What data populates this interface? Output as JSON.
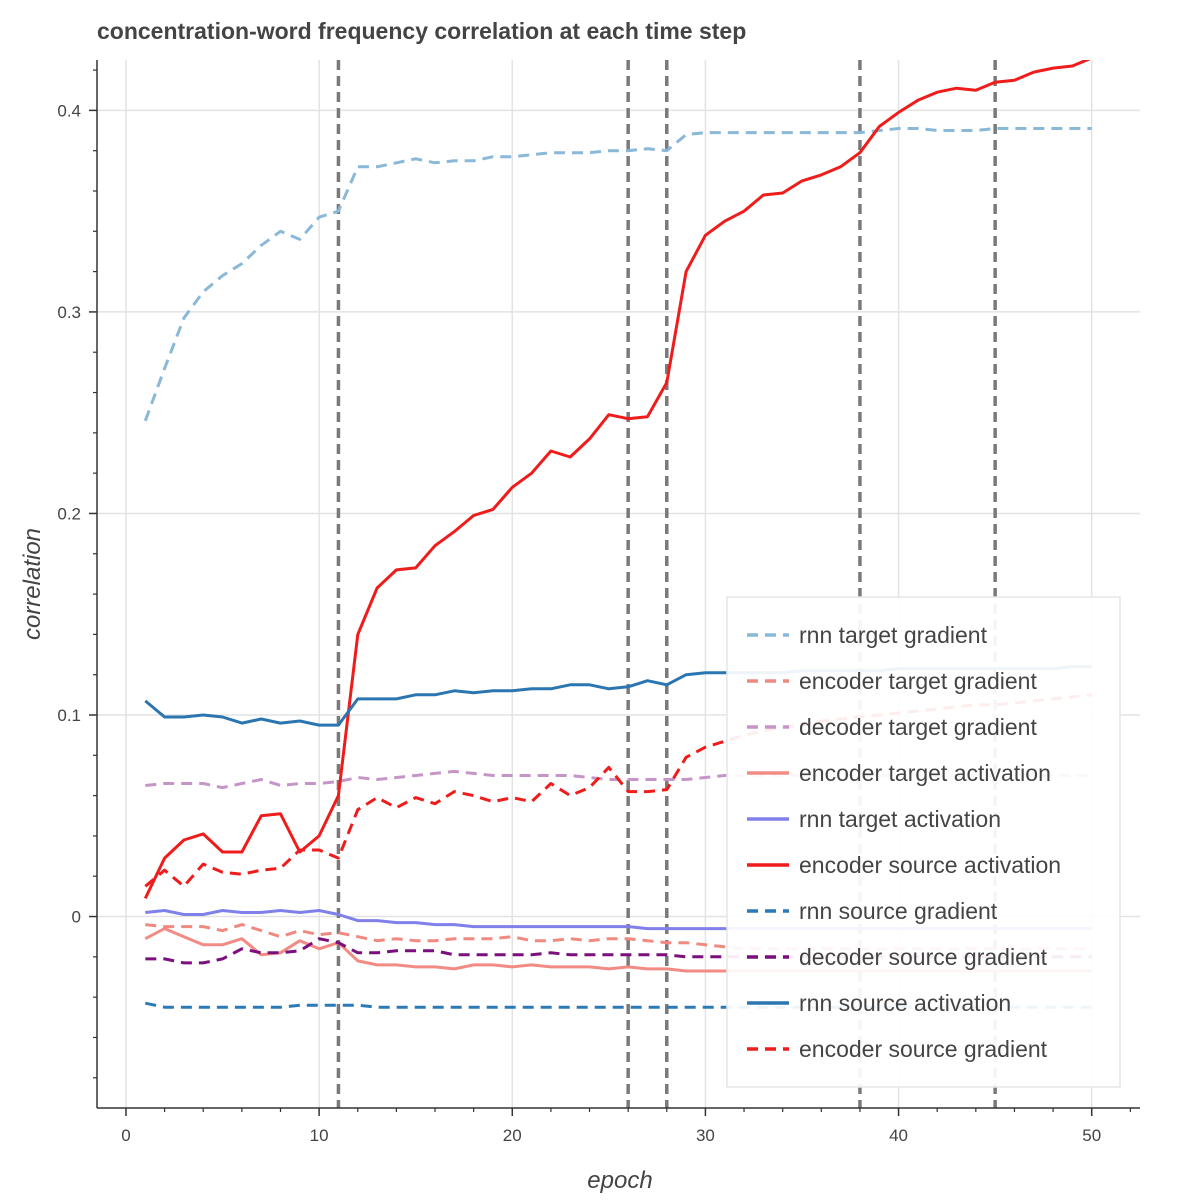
{
  "chart_data": {
    "type": "line",
    "title": "concentration-word frequency correlation at each time step",
    "xlabel": "epoch",
    "ylabel": "correlation",
    "xlim": [
      -1.5,
      52.5
    ],
    "ylim": [
      -0.095,
      0.425
    ],
    "xticks": [
      0,
      10,
      20,
      30,
      40,
      50
    ],
    "xtick_labels": [
      "0",
      "10",
      "20",
      "30",
      "40",
      "50"
    ],
    "yticks": [
      0,
      0.1,
      0.2,
      0.3,
      0.4
    ],
    "ytick_labels": [
      "0",
      "0.1",
      "0.2",
      "0.3",
      "0.4"
    ],
    "grid": true,
    "legend_position": "bottom-right",
    "vertical_lines": [
      11,
      26,
      28,
      38,
      45
    ],
    "x": [
      1,
      2,
      3,
      4,
      5,
      6,
      7,
      8,
      9,
      10,
      11,
      12,
      13,
      14,
      15,
      16,
      17,
      18,
      19,
      20,
      21,
      22,
      23,
      24,
      25,
      26,
      27,
      28,
      29,
      30,
      31,
      32,
      33,
      34,
      35,
      36,
      37,
      38,
      39,
      40,
      41,
      42,
      43,
      44,
      45,
      46,
      47,
      48,
      49,
      50
    ],
    "series": [
      {
        "name": "rnn target gradient",
        "color": "#89b8d8",
        "dash": "dashed",
        "values": [
          0.246,
          0.272,
          0.297,
          0.31,
          0.318,
          0.324,
          0.333,
          0.34,
          0.336,
          0.347,
          0.35,
          0.372,
          0.372,
          0.374,
          0.376,
          0.374,
          0.375,
          0.375,
          0.377,
          0.377,
          0.378,
          0.379,
          0.379,
          0.379,
          0.38,
          0.38,
          0.381,
          0.38,
          0.388,
          0.389,
          0.389,
          0.389,
          0.389,
          0.389,
          0.389,
          0.389,
          0.389,
          0.389,
          0.39,
          0.391,
          0.391,
          0.39,
          0.39,
          0.39,
          0.391,
          0.391,
          0.391,
          0.391,
          0.391,
          0.391
        ]
      },
      {
        "name": "encoder target gradient",
        "color": "#f08a80",
        "dash": "dashed",
        "values": [
          -0.004,
          -0.005,
          -0.005,
          -0.005,
          -0.007,
          -0.004,
          -0.007,
          -0.01,
          -0.007,
          -0.009,
          -0.008,
          -0.01,
          -0.012,
          -0.011,
          -0.012,
          -0.012,
          -0.011,
          -0.011,
          -0.011,
          -0.01,
          -0.012,
          -0.012,
          -0.011,
          -0.012,
          -0.011,
          -0.011,
          -0.012,
          -0.013,
          -0.013,
          -0.014,
          -0.015,
          -0.016,
          -0.016,
          -0.016,
          -0.016,
          -0.016,
          -0.016,
          -0.016,
          -0.016,
          -0.016,
          -0.016,
          -0.016,
          -0.016,
          -0.016,
          -0.016,
          -0.016,
          -0.016,
          -0.016,
          -0.016,
          -0.016
        ]
      },
      {
        "name": "decoder target gradient",
        "color": "#c695c8",
        "dash": "dashed",
        "values": [
          0.065,
          0.066,
          0.066,
          0.066,
          0.064,
          0.066,
          0.068,
          0.065,
          0.066,
          0.066,
          0.067,
          0.069,
          0.068,
          0.069,
          0.07,
          0.071,
          0.072,
          0.071,
          0.07,
          0.07,
          0.07,
          0.07,
          0.07,
          0.069,
          0.068,
          0.068,
          0.068,
          0.068,
          0.068,
          0.069,
          0.07,
          0.07,
          0.07,
          0.07,
          0.07,
          0.07,
          0.07,
          0.07,
          0.07,
          0.07,
          0.07,
          0.07,
          0.07,
          0.07,
          0.07,
          0.07,
          0.07,
          0.07,
          0.07,
          0.07
        ]
      },
      {
        "name": "encoder target activation",
        "color": "#f28b84",
        "dash": "solid",
        "values": [
          -0.011,
          -0.006,
          -0.01,
          -0.014,
          -0.014,
          -0.011,
          -0.019,
          -0.018,
          -0.012,
          -0.016,
          -0.013,
          -0.022,
          -0.024,
          -0.024,
          -0.025,
          -0.025,
          -0.026,
          -0.024,
          -0.024,
          -0.025,
          -0.024,
          -0.025,
          -0.025,
          -0.025,
          -0.026,
          -0.025,
          -0.026,
          -0.026,
          -0.027,
          -0.027,
          -0.027,
          -0.027,
          -0.027,
          -0.027,
          -0.027,
          -0.027,
          -0.027,
          -0.027,
          -0.027,
          -0.027,
          -0.027,
          -0.027,
          -0.027,
          -0.027,
          -0.027,
          -0.027,
          -0.027,
          -0.027,
          -0.027,
          -0.027
        ]
      },
      {
        "name": "rnn target activation",
        "color": "#8080ea",
        "dash": "solid",
        "values": [
          0.002,
          0.003,
          0.001,
          0.001,
          0.003,
          0.002,
          0.002,
          0.003,
          0.002,
          0.003,
          0.001,
          -0.002,
          -0.002,
          -0.003,
          -0.003,
          -0.004,
          -0.004,
          -0.005,
          -0.005,
          -0.005,
          -0.005,
          -0.005,
          -0.005,
          -0.005,
          -0.005,
          -0.005,
          -0.006,
          -0.006,
          -0.006,
          -0.006,
          -0.006,
          -0.006,
          -0.006,
          -0.006,
          -0.006,
          -0.006,
          -0.006,
          -0.006,
          -0.006,
          -0.006,
          -0.006,
          -0.006,
          -0.006,
          -0.006,
          -0.006,
          -0.006,
          -0.006,
          -0.006,
          -0.006,
          -0.006
        ]
      },
      {
        "name": "encoder source activation",
        "color": "#ef1c1c",
        "dash": "solid",
        "values": [
          0.009,
          0.029,
          0.038,
          0.041,
          0.032,
          0.032,
          0.05,
          0.051,
          0.032,
          0.04,
          0.06,
          0.14,
          0.163,
          0.172,
          0.173,
          0.184,
          0.191,
          0.199,
          0.202,
          0.213,
          0.22,
          0.231,
          0.228,
          0.237,
          0.249,
          0.247,
          0.248,
          0.265,
          0.32,
          0.338,
          0.345,
          0.35,
          0.358,
          0.359,
          0.365,
          0.368,
          0.372,
          0.379,
          0.392,
          0.399,
          0.405,
          0.409,
          0.411,
          0.41,
          0.414,
          0.415,
          0.419,
          0.421,
          0.422,
          0.426
        ]
      },
      {
        "name": "rnn source gradient",
        "color": "#2a7ab8",
        "dash": "dashed",
        "values": [
          -0.043,
          -0.045,
          -0.045,
          -0.045,
          -0.045,
          -0.045,
          -0.045,
          -0.045,
          -0.044,
          -0.044,
          -0.044,
          -0.044,
          -0.045,
          -0.045,
          -0.045,
          -0.045,
          -0.045,
          -0.045,
          -0.045,
          -0.045,
          -0.045,
          -0.045,
          -0.045,
          -0.045,
          -0.045,
          -0.045,
          -0.045,
          -0.045,
          -0.045,
          -0.045,
          -0.045,
          -0.045,
          -0.045,
          -0.045,
          -0.045,
          -0.045,
          -0.045,
          -0.045,
          -0.045,
          -0.045,
          -0.045,
          -0.045,
          -0.045,
          -0.045,
          -0.045,
          -0.045,
          -0.045,
          -0.045,
          -0.045,
          -0.045
        ]
      },
      {
        "name": "decoder source gradient",
        "color": "#7b0f7e",
        "dash": "dashed",
        "values": [
          -0.021,
          -0.021,
          -0.023,
          -0.023,
          -0.021,
          -0.016,
          -0.018,
          -0.018,
          -0.017,
          -0.011,
          -0.013,
          -0.018,
          -0.018,
          -0.017,
          -0.017,
          -0.017,
          -0.019,
          -0.019,
          -0.019,
          -0.019,
          -0.019,
          -0.018,
          -0.019,
          -0.019,
          -0.019,
          -0.019,
          -0.019,
          -0.019,
          -0.02,
          -0.02,
          -0.02,
          -0.02,
          -0.02,
          -0.02,
          -0.02,
          -0.02,
          -0.02,
          -0.02,
          -0.02,
          -0.02,
          -0.02,
          -0.02,
          -0.02,
          -0.02,
          -0.02,
          -0.02,
          -0.02,
          -0.02,
          -0.02,
          -0.02
        ]
      },
      {
        "name": "rnn source activation",
        "color": "#2b76b0",
        "dash": "solid",
        "values": [
          0.107,
          0.099,
          0.099,
          0.1,
          0.099,
          0.096,
          0.098,
          0.096,
          0.097,
          0.095,
          0.095,
          0.108,
          0.108,
          0.108,
          0.11,
          0.11,
          0.112,
          0.111,
          0.112,
          0.112,
          0.113,
          0.113,
          0.115,
          0.115,
          0.113,
          0.114,
          0.117,
          0.115,
          0.12,
          0.121,
          0.121,
          0.121,
          0.121,
          0.121,
          0.122,
          0.122,
          0.122,
          0.122,
          0.122,
          0.123,
          0.123,
          0.123,
          0.123,
          0.123,
          0.123,
          0.123,
          0.123,
          0.123,
          0.124,
          0.124
        ]
      },
      {
        "name": "encoder source gradient",
        "color": "#ef1c1c",
        "dash": "dashed",
        "values": [
          0.015,
          0.023,
          0.015,
          0.026,
          0.022,
          0.021,
          0.023,
          0.024,
          0.033,
          0.033,
          0.029,
          0.053,
          0.059,
          0.054,
          0.059,
          0.056,
          0.062,
          0.06,
          0.057,
          0.059,
          0.057,
          0.066,
          0.06,
          0.064,
          0.074,
          0.062,
          0.062,
          0.063,
          0.079,
          0.084,
          0.087,
          0.09,
          0.092,
          0.094,
          0.095,
          0.097,
          0.098,
          0.099,
          0.1,
          0.101,
          0.102,
          0.103,
          0.104,
          0.105,
          0.105,
          0.106,
          0.107,
          0.108,
          0.109,
          0.11
        ]
      }
    ]
  }
}
